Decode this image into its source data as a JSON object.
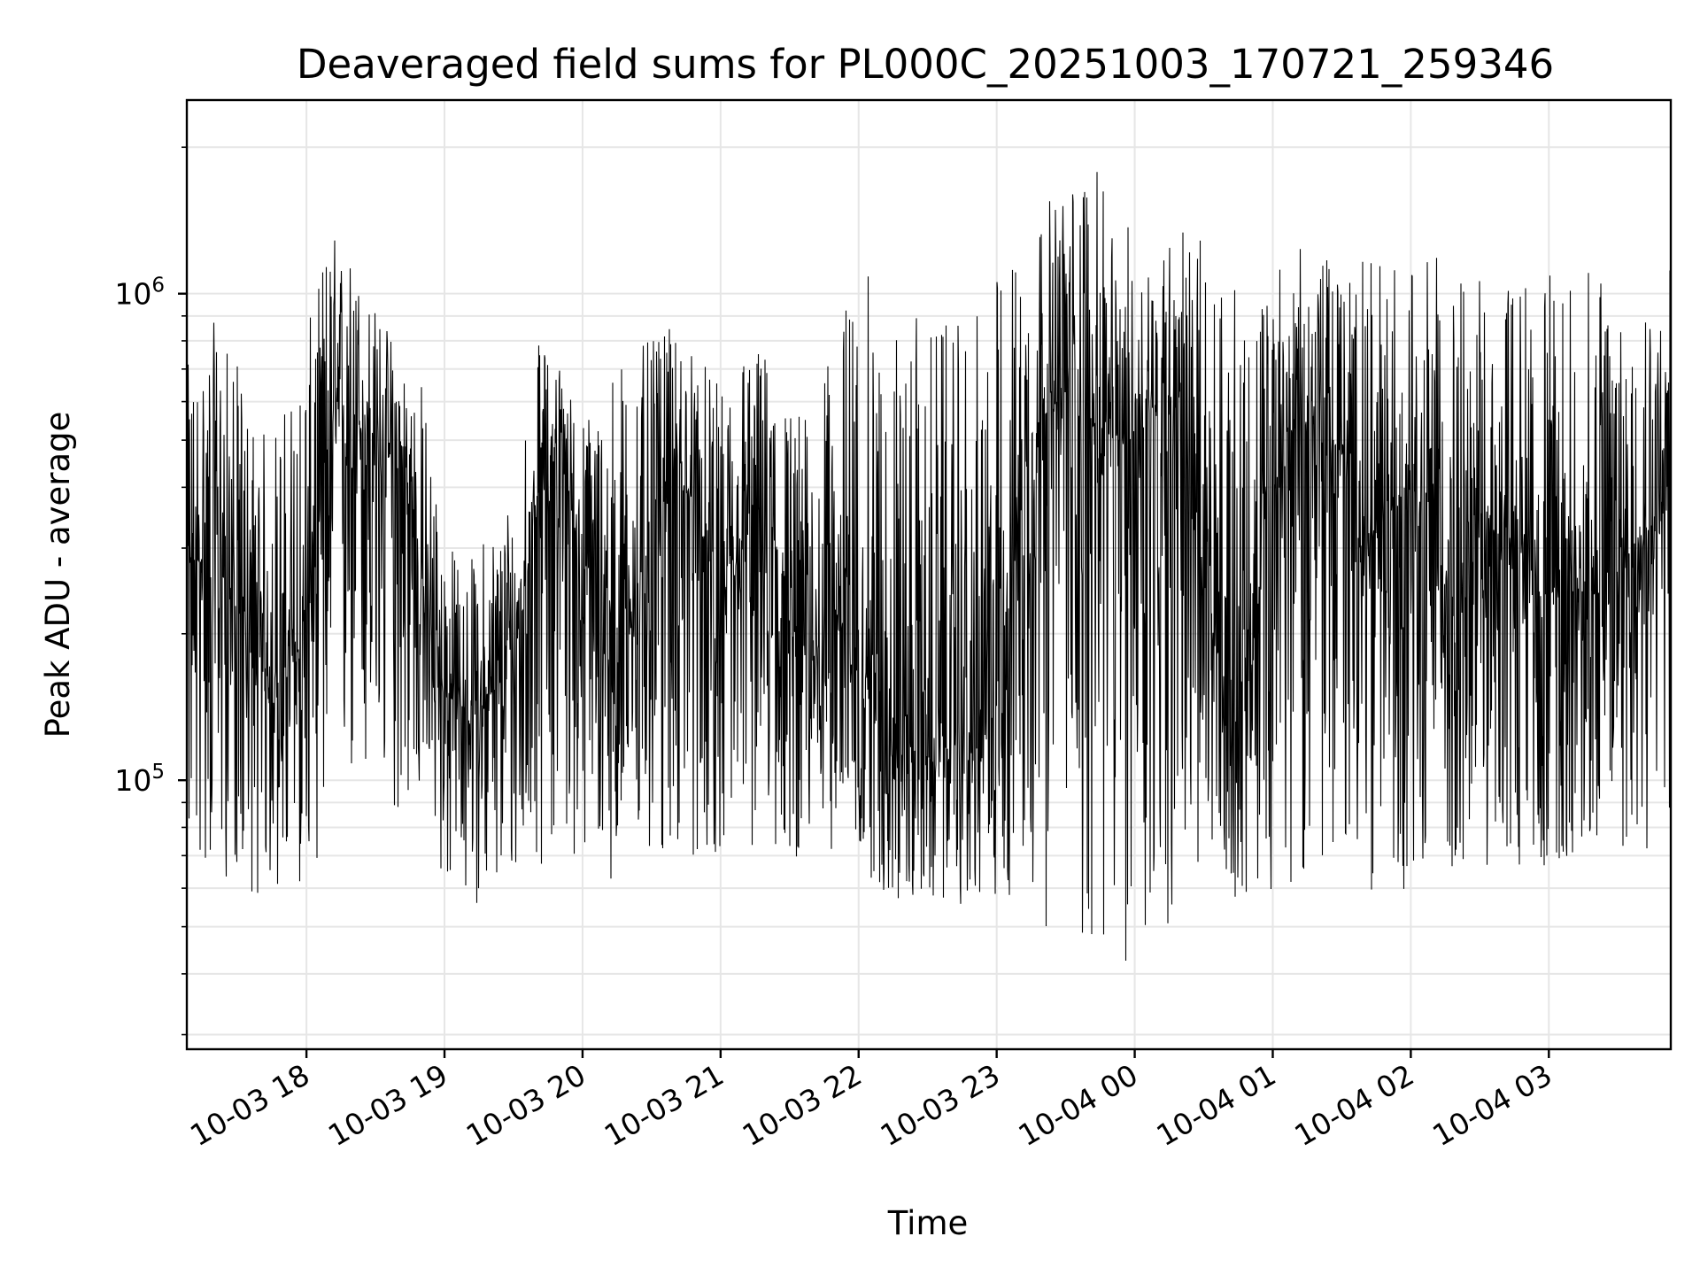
{
  "chart_data": {
    "type": "line",
    "title": "Deaveraged field sums for PL000C_20251003_170721_259346",
    "xlabel": "Time",
    "ylabel": "Peak ADU - average",
    "x_type": "datetime",
    "y_scale": "log",
    "xlim": [
      "2025-10-03 17:08",
      "2025-10-04 03:53"
    ],
    "ylim": [
      28000,
      2500000
    ],
    "grid": true,
    "legend": "none",
    "line_color": "#000000",
    "x_ticks": [
      {
        "value": "2025-10-03 18:00",
        "label": "10-03 18"
      },
      {
        "value": "2025-10-03 19:00",
        "label": "10-03 19"
      },
      {
        "value": "2025-10-03 20:00",
        "label": "10-03 20"
      },
      {
        "value": "2025-10-03 21:00",
        "label": "10-03 21"
      },
      {
        "value": "2025-10-03 22:00",
        "label": "10-03 22"
      },
      {
        "value": "2025-10-03 23:00",
        "label": "10-03 23"
      },
      {
        "value": "2025-10-04 00:00",
        "label": "10-04 00"
      },
      {
        "value": "2025-10-04 01:00",
        "label": "10-04 01"
      },
      {
        "value": "2025-10-04 02:00",
        "label": "10-04 02"
      },
      {
        "value": "2025-10-04 03:00",
        "label": "10-04 03"
      }
    ],
    "y_ticks": [
      {
        "value": 100000,
        "base": "10",
        "exp": "5"
      },
      {
        "value": 1000000,
        "base": "10",
        "exp": "6"
      }
    ],
    "series": [
      {
        "x": [
          "2025-10-03 17:10",
          "2025-10-03 17:20",
          "2025-10-03 17:30",
          "2025-10-03 17:40",
          "2025-10-03 17:50",
          "2025-10-03 18:00",
          "2025-10-03 18:10",
          "2025-10-03 18:20",
          "2025-10-03 18:30",
          "2025-10-03 18:40",
          "2025-10-03 18:50",
          "2025-10-03 19:00",
          "2025-10-03 19:10",
          "2025-10-03 19:20",
          "2025-10-03 19:30",
          "2025-10-03 19:40",
          "2025-10-03 19:50",
          "2025-10-03 20:00",
          "2025-10-03 20:10",
          "2025-10-03 20:20",
          "2025-10-03 20:30",
          "2025-10-03 20:40",
          "2025-10-03 20:50",
          "2025-10-03 21:00",
          "2025-10-03 21:10",
          "2025-10-03 21:20",
          "2025-10-03 21:30",
          "2025-10-03 21:40",
          "2025-10-03 21:50",
          "2025-10-03 22:00",
          "2025-10-03 22:10",
          "2025-10-03 22:20",
          "2025-10-03 22:30",
          "2025-10-03 22:40",
          "2025-10-03 22:50",
          "2025-10-03 23:00",
          "2025-10-03 23:10",
          "2025-10-03 23:20",
          "2025-10-03 23:30",
          "2025-10-03 23:40",
          "2025-10-03 23:50",
          "2025-10-04 00:00",
          "2025-10-04 00:10",
          "2025-10-04 00:20",
          "2025-10-04 00:30",
          "2025-10-04 00:40",
          "2025-10-04 00:50",
          "2025-10-04 01:00",
          "2025-10-04 01:10",
          "2025-10-04 01:20",
          "2025-10-04 01:30",
          "2025-10-04 01:40",
          "2025-10-04 01:50",
          "2025-10-04 02:00",
          "2025-10-04 02:10",
          "2025-10-04 02:20",
          "2025-10-04 02:30",
          "2025-10-04 02:40",
          "2025-10-04 02:50",
          "2025-10-04 03:00",
          "2025-10-04 03:10",
          "2025-10-04 03:20",
          "2025-10-04 03:30",
          "2025-10-04 03:40",
          "2025-10-04 03:50"
        ],
        "min": [
          65000,
          60000,
          62000,
          56000,
          58000,
          60000,
          78000,
          85000,
          80000,
          82000,
          88000,
          58000,
          56000,
          55000,
          58000,
          65000,
          72000,
          66000,
          62000,
          64000,
          62000,
          68000,
          66000,
          70000,
          72000,
          66000,
          68000,
          70000,
          72000,
          70000,
          56000,
          54000,
          55000,
          56000,
          54000,
          57000,
          52000,
          50000,
          46000,
          42000,
          40000,
          38000,
          42000,
          56000,
          60000,
          58000,
          56000,
          60000,
          62000,
          64000,
          62000,
          60000,
          58000,
          60000,
          62000,
          64000,
          66000,
          64000,
          62000,
          66000,
          68000,
          70000,
          72000,
          70000,
          72000
        ],
        "max": [
          720000,
          880000,
          720000,
          520000,
          600000,
          820000,
          1400000,
          1200000,
          950000,
          800000,
          680000,
          320000,
          280000,
          340000,
          420000,
          800000,
          720000,
          560000,
          720000,
          780000,
          800000,
          860000,
          760000,
          640000,
          820000,
          760000,
          620000,
          560000,
          820000,
          1260000,
          900000,
          900000,
          920000,
          860000,
          880000,
          1150000,
          1300000,
          1550000,
          1650000,
          2000000,
          1450000,
          1380000,
          1220000,
          1450000,
          1300000,
          1150000,
          820000,
          1200000,
          1250000,
          1200000,
          1150000,
          1200000,
          1180000,
          1150000,
          1220000,
          1080000,
          1100000,
          1050000,
          1120000,
          1100000,
          1140000,
          1120000,
          1160000,
          1140000,
          1180000
        ],
        "center": [
          260000,
          320000,
          220000,
          170000,
          160000,
          200000,
          520000,
          560000,
          480000,
          440000,
          260000,
          150000,
          140000,
          150000,
          170000,
          380000,
          520000,
          260000,
          200000,
          200000,
          340000,
          420000,
          360000,
          200000,
          300000,
          380000,
          200000,
          180000,
          220000,
          170000,
          150000,
          120000,
          110000,
          120000,
          110000,
          160000,
          380000,
          560000,
          620000,
          560000,
          480000,
          520000,
          600000,
          620000,
          220000,
          160000,
          160000,
          380000,
          520000,
          560000,
          460000,
          280000,
          340000,
          420000,
          300000,
          220000,
          260000,
          340000,
          280000,
          240000,
          260000,
          240000,
          280000,
          320000,
          380000
        ]
      }
    ]
  }
}
